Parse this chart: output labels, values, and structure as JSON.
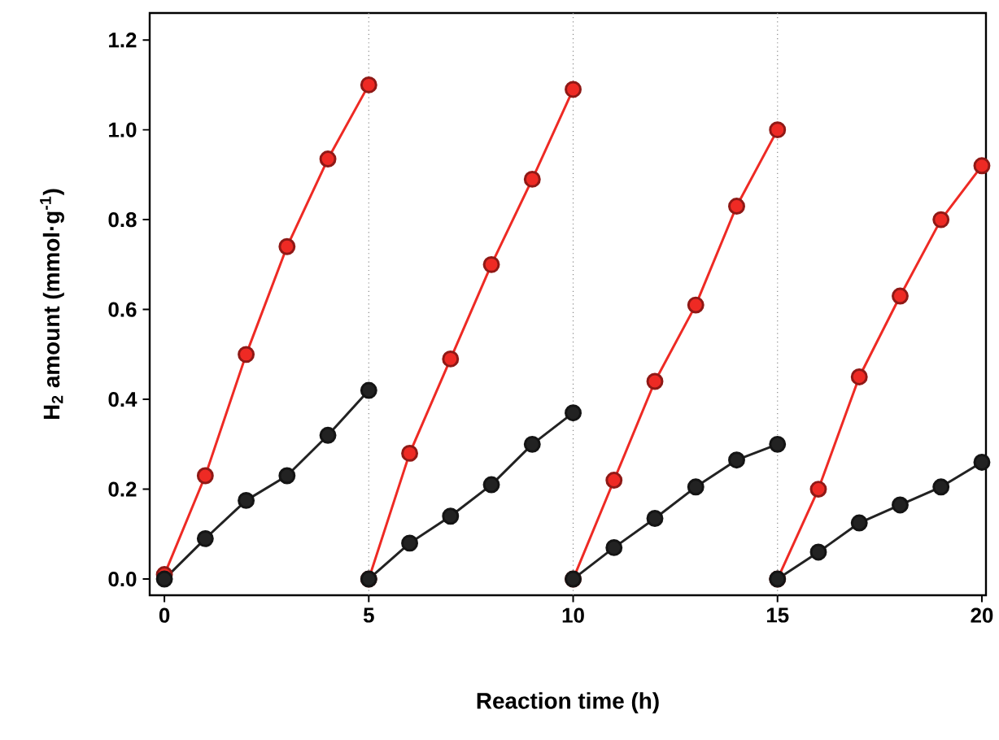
{
  "chart_data": {
    "type": "line",
    "xlabel": "Reaction time (h)",
    "ylabel": "H$_{2}$ amount (mmol·g$^{-1}$)",
    "series": [
      {
        "color": "#ee2a24",
        "x": [
          0,
          1,
          2,
          3,
          4,
          5
        ],
        "values": [
          0.01,
          0.23,
          0.5,
          0.74,
          0.935,
          1.1
        ]
      },
      {
        "color": "#ee2a24",
        "x": [
          5,
          6,
          7,
          8,
          9,
          10
        ],
        "values": [
          0.0,
          0.28,
          0.49,
          0.7,
          0.89,
          1.09
        ]
      },
      {
        "color": "#ee2a24",
        "x": [
          10,
          11,
          12,
          13,
          14,
          15
        ],
        "values": [
          0.0,
          0.22,
          0.44,
          0.61,
          0.83,
          1.0
        ]
      },
      {
        "color": "#ee2a24",
        "x": [
          15,
          16,
          17,
          18,
          19,
          20
        ],
        "values": [
          0.0,
          0.2,
          0.45,
          0.63,
          0.8,
          0.92
        ]
      },
      {
        "color": "#222222",
        "x": [
          0,
          1,
          2,
          3,
          4,
          5
        ],
        "values": [
          0.0,
          0.09,
          0.175,
          0.23,
          0.32,
          0.42
        ]
      },
      {
        "color": "#222222",
        "x": [
          5,
          6,
          7,
          8,
          9,
          10
        ],
        "values": [
          0.0,
          0.08,
          0.14,
          0.21,
          0.3,
          0.37
        ]
      },
      {
        "color": "#222222",
        "x": [
          10,
          11,
          12,
          13,
          14,
          15
        ],
        "values": [
          0.0,
          0.07,
          0.135,
          0.205,
          0.265,
          0.3
        ]
      },
      {
        "color": "#222222",
        "x": [
          15,
          16,
          17,
          18,
          19,
          20
        ],
        "values": [
          0.0,
          0.06,
          0.125,
          0.165,
          0.205,
          0.26
        ]
      }
    ],
    "xlim": [
      -0.36,
      20.1
    ],
    "ylim": [
      -0.036,
      1.26
    ],
    "xticks": [
      0,
      5,
      10,
      15,
      20
    ],
    "yticks": [
      {
        "value": 0,
        "label": "0.0"
      },
      {
        "value": 0.2,
        "label": "0.2"
      },
      {
        "value": 0.4,
        "label": "0.4"
      },
      {
        "value": 0.6,
        "label": "0.6"
      },
      {
        "value": 0.8,
        "label": "0.8"
      },
      {
        "value": 1.0,
        "label": "1.0"
      },
      {
        "value": 1.2,
        "label": "1.2"
      }
    ],
    "ref_lines": [
      {
        "axis": "x",
        "value": 5,
        "color": "#888888",
        "line_style": "dotted"
      },
      {
        "axis": "x",
        "value": 10,
        "color": "#888888",
        "line_style": "dotted"
      },
      {
        "axis": "x",
        "value": 15,
        "color": "#888888",
        "line_style": "dotted"
      }
    ],
    "marker": "circle",
    "line_style": "solid"
  }
}
